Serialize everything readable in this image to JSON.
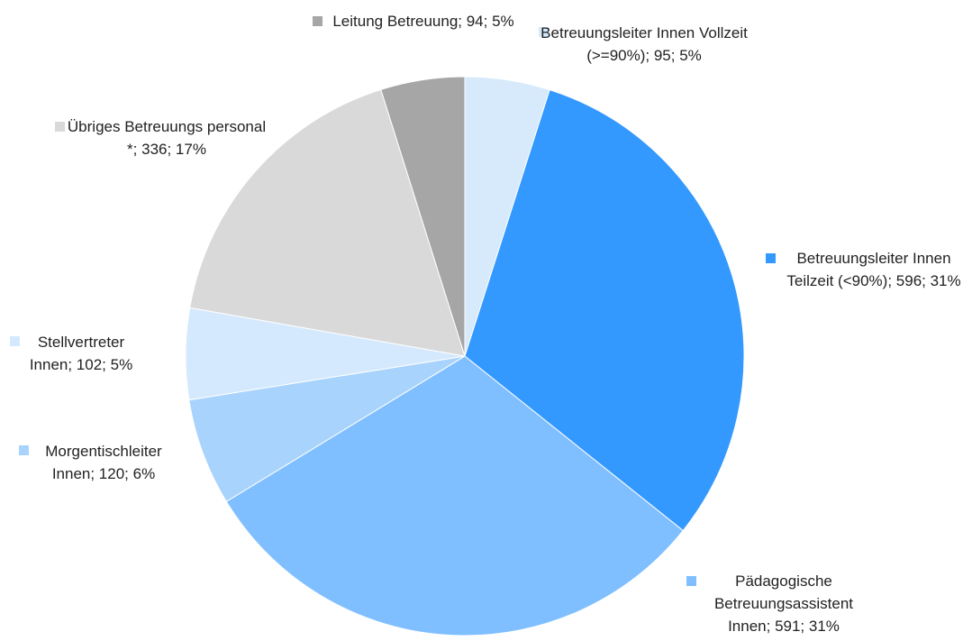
{
  "chart_data": {
    "type": "pie",
    "values": [
      95,
      596,
      591,
      120,
      102,
      336,
      94
    ],
    "value_labels": [
      "Betreuungsleiter Innen Vollzeit (>=90%); 95; 5%",
      "Betreuungsleiter Innen Teilzeit (<90%); 596; 31%",
      "Pädagogische Betreuungsassistent Innen; 591; 31%",
      "Morgentischleiter Innen; 120; 6%",
      "Stellvertreter Innen; 102; 5%",
      "Übriges Betreuungs personal *; 336; 17%",
      "Leitung Betreuung; 94; 5%"
    ],
    "colors": [
      "#d6eafc",
      "#3399ff",
      "#80bfff",
      "#a8d3fc",
      "#d4e9fd",
      "#d9d9d9",
      "#a6a6a6"
    ]
  }
}
